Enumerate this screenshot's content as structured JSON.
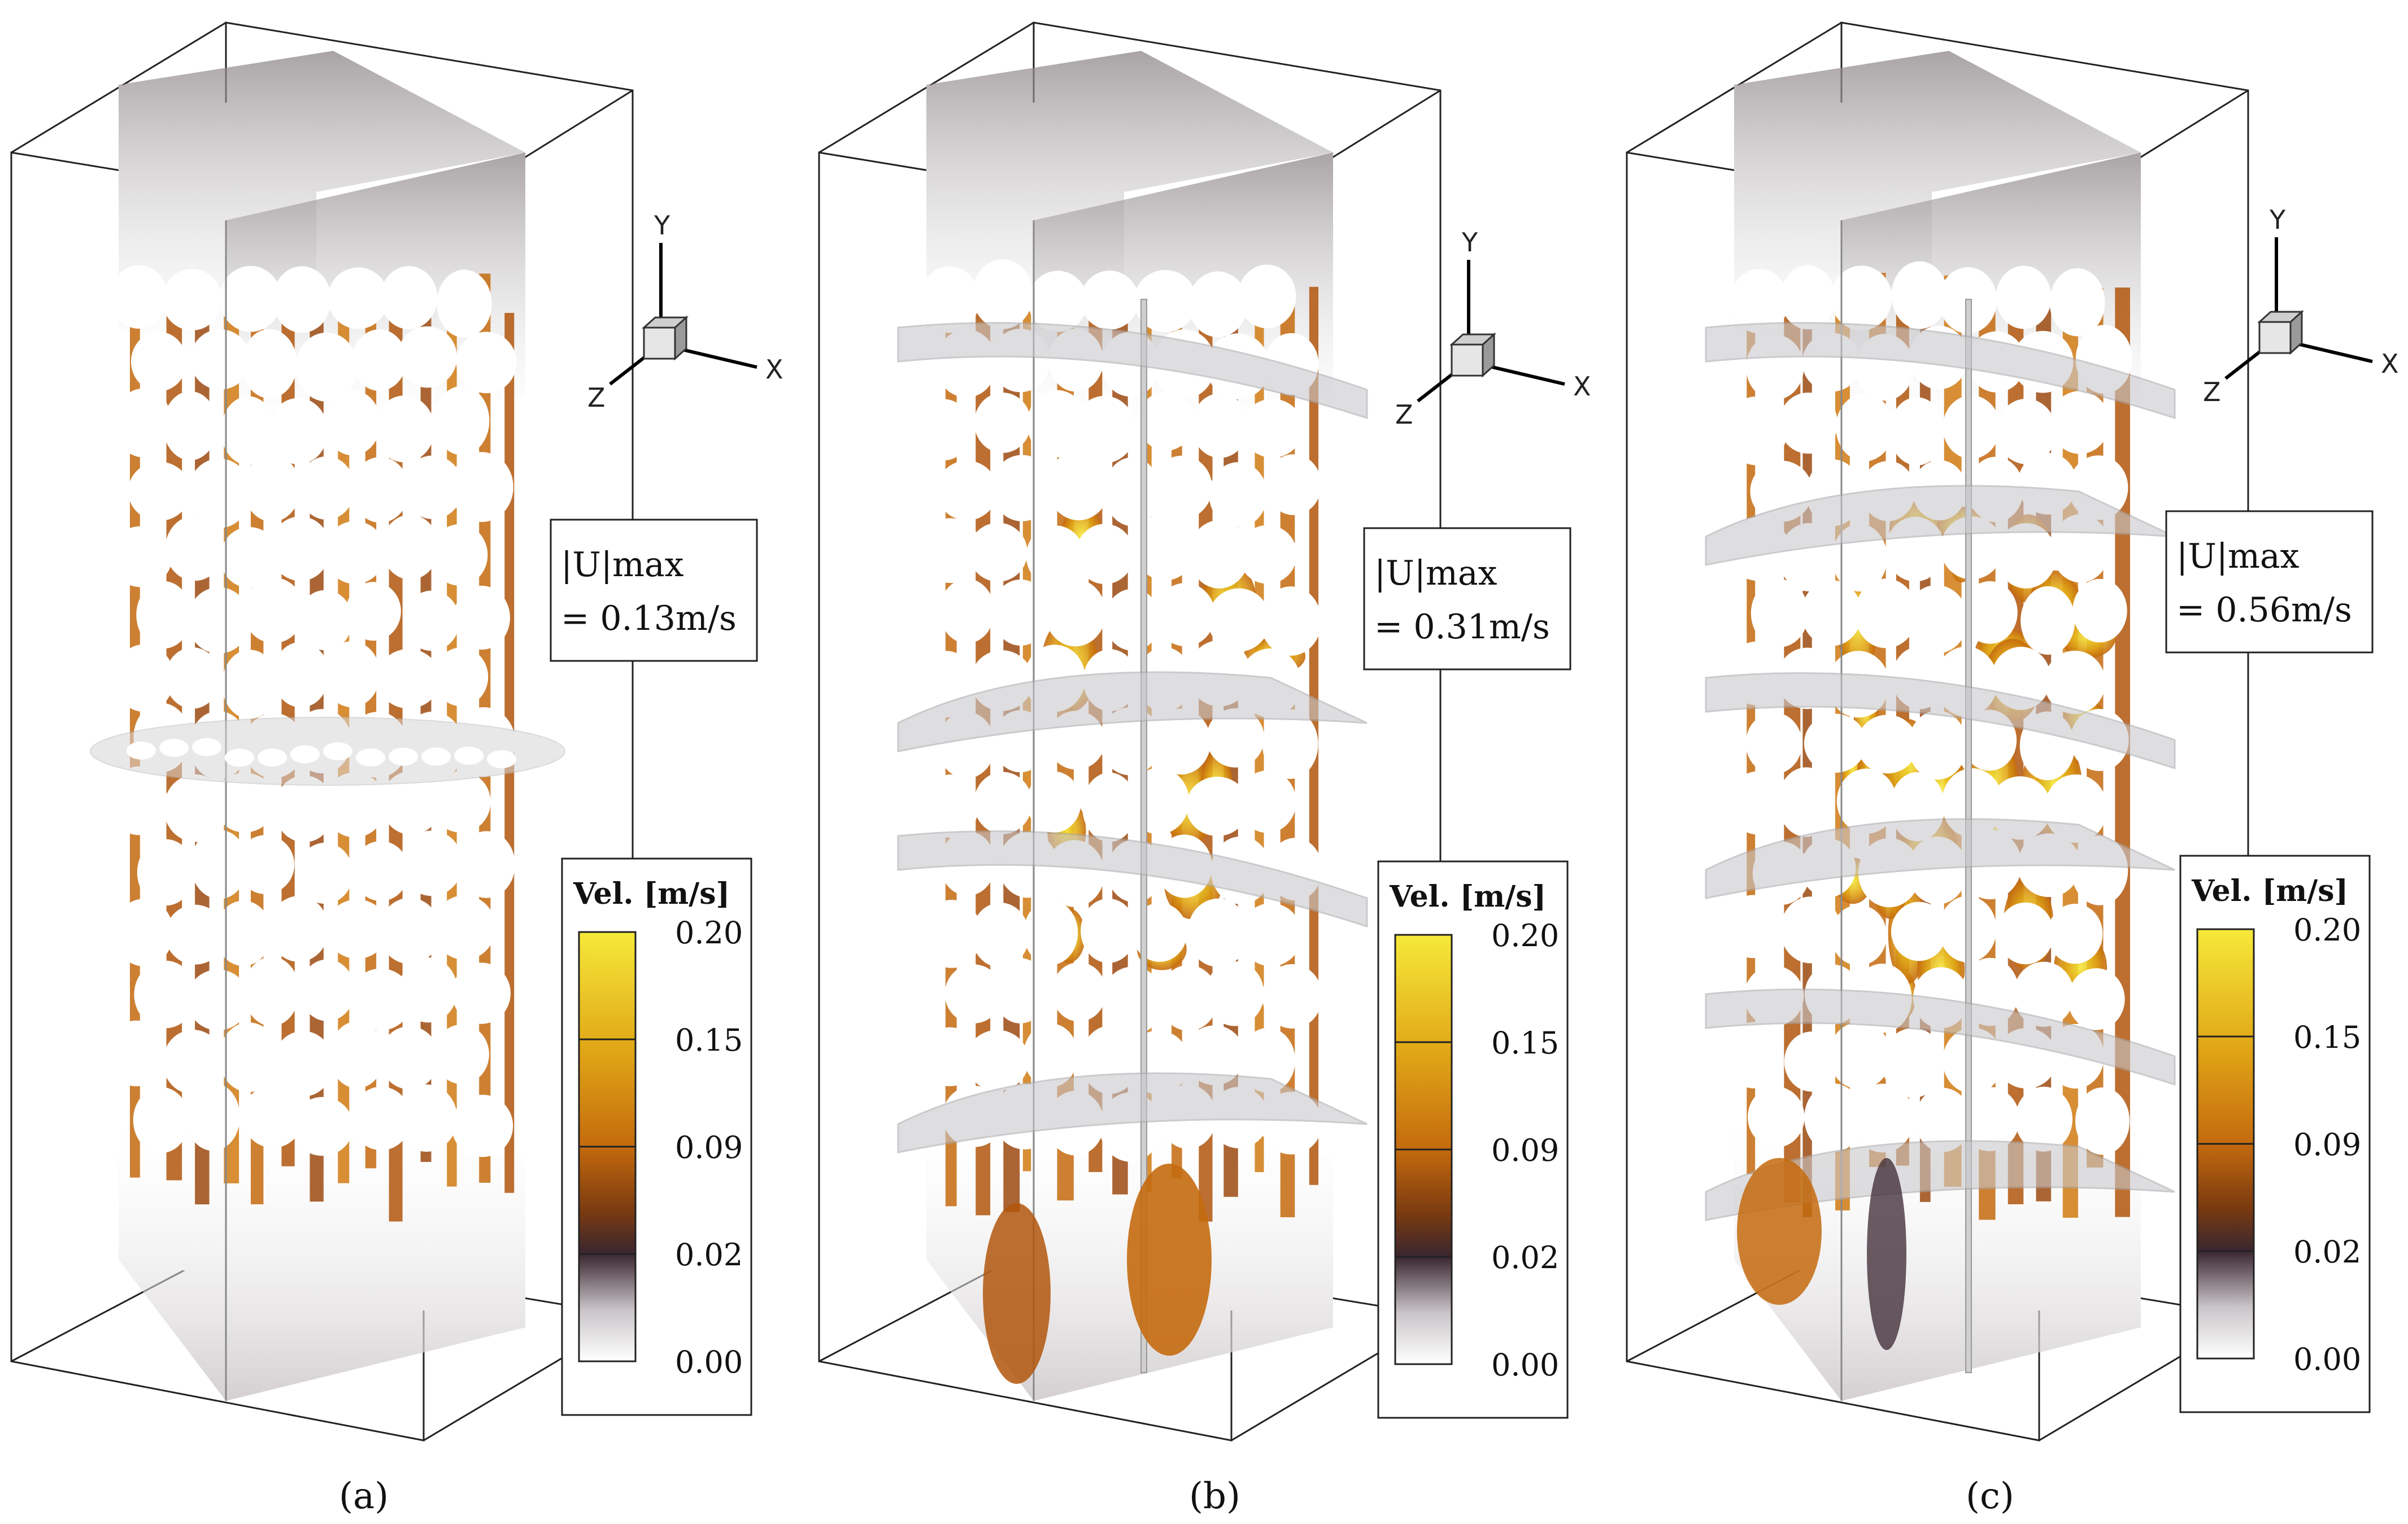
{
  "axes": {
    "x": "X",
    "y": "Y",
    "z": "Z"
  },
  "legend": {
    "title": "Vel. [m/s]",
    "ticks": [
      "0.20",
      "0.15",
      "0.09",
      "0.02",
      "0.00"
    ],
    "colors": [
      "#f6e93a",
      "#e0b11a",
      "#c46a0e",
      "#3a2630",
      "#ffffff"
    ]
  },
  "umax_label": "|U|max",
  "panels": [
    {
      "id": "a",
      "caption": "(a)",
      "umax": "= 0.13m/s",
      "baffles": 1
    },
    {
      "id": "b",
      "caption": "(b)",
      "umax": "= 0.31m/s",
      "baffles": 4
    },
    {
      "id": "c",
      "caption": "(c)",
      "umax": "= 0.56m/s",
      "baffles": 6
    }
  ]
}
